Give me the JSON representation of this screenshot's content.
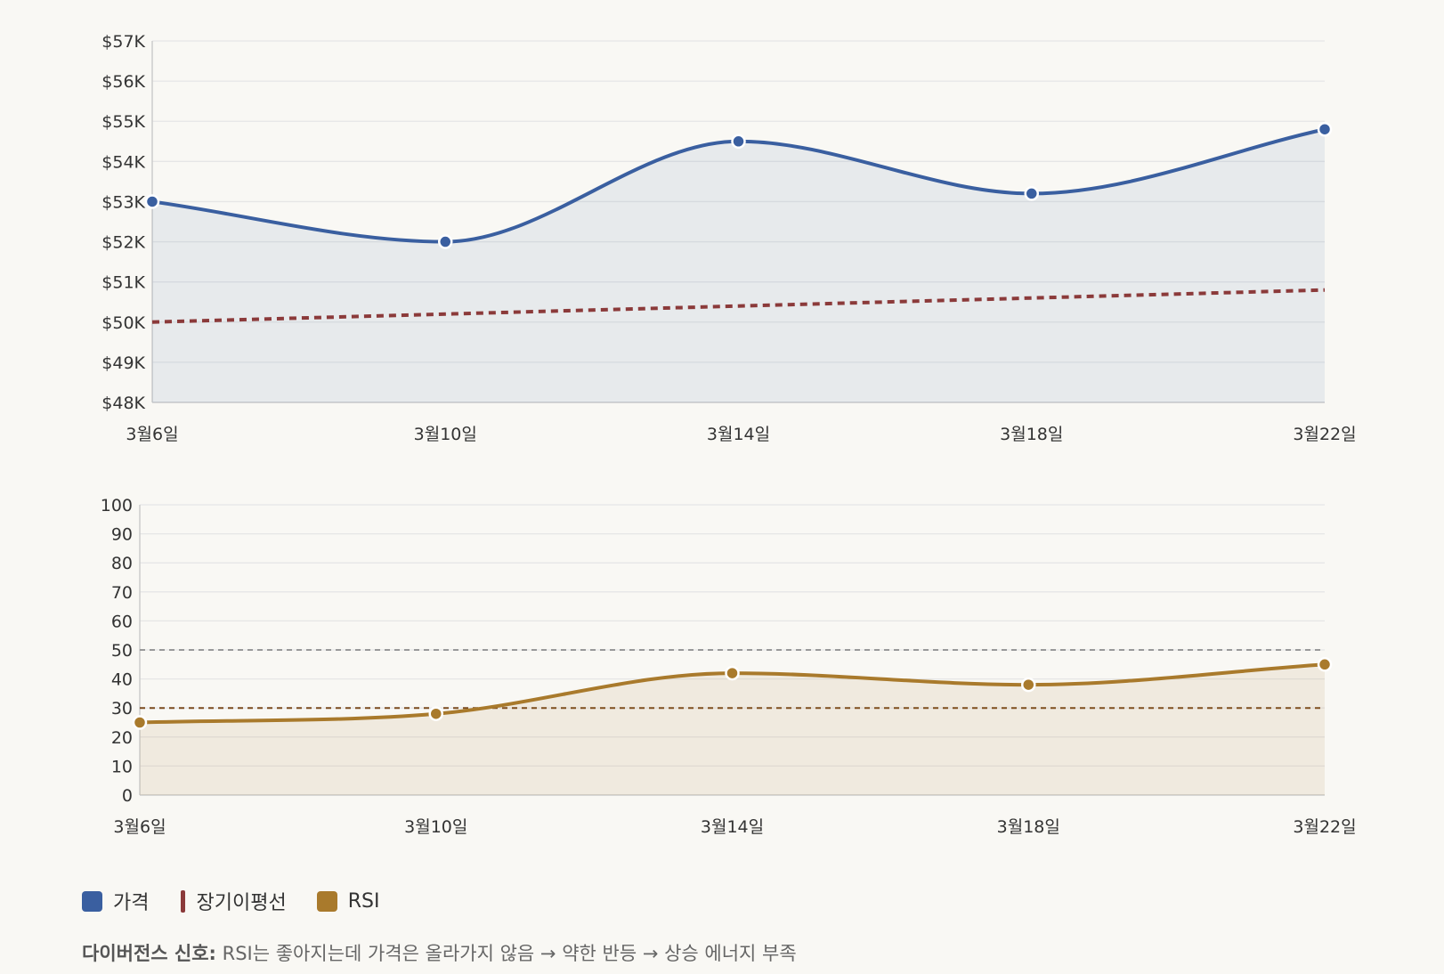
{
  "colors": {
    "price": "#3a5fa0",
    "ma": "#8b3a3a",
    "rsi": "#a97a2c",
    "grid": "#e6e6e6",
    "axis": "#cccccc",
    "ref50": "#999999",
    "ref30": "#7a4a1e"
  },
  "chart_data": [
    {
      "type": "area",
      "categories": [
        "3월6일",
        "3월10일",
        "3월14일",
        "3월18일",
        "3월22일"
      ],
      "y_ticks": [
        "$48K",
        "$49K",
        "$50K",
        "$51K",
        "$52K",
        "$53K",
        "$54K",
        "$55K",
        "$56K",
        "$57K"
      ],
      "ylim": [
        48000,
        57000
      ],
      "grid": true,
      "series": [
        {
          "name": "가격",
          "values": [
            53000,
            52000,
            54500,
            53200,
            54800
          ],
          "style": "solid area with markers"
        },
        {
          "name": "장기이평선",
          "values": [
            50000,
            50200,
            50400,
            50600,
            50800
          ],
          "style": "dotted line"
        }
      ]
    },
    {
      "type": "area",
      "categories": [
        "3월6일",
        "3월10일",
        "3월14일",
        "3월18일",
        "3월22일"
      ],
      "y_ticks": [
        "0",
        "10",
        "20",
        "30",
        "40",
        "50",
        "60",
        "70",
        "80",
        "90",
        "100"
      ],
      "ylim": [
        0,
        100
      ],
      "grid": true,
      "reference_lines": [
        50,
        30
      ],
      "series": [
        {
          "name": "RSI",
          "values": [
            25,
            28,
            42,
            38,
            45
          ],
          "style": "solid area with markers"
        }
      ]
    }
  ],
  "legend": {
    "items": [
      {
        "label": "가격",
        "shape": "box"
      },
      {
        "label": "장기이평선",
        "shape": "bar"
      },
      {
        "label": "RSI",
        "shape": "box"
      }
    ]
  },
  "note": {
    "label": "다이버전스 신호:",
    "text": " RSI는 좋아지는데 가격은 올라가지 않음 → 약한 반등 → 상승 에너지 부족"
  }
}
